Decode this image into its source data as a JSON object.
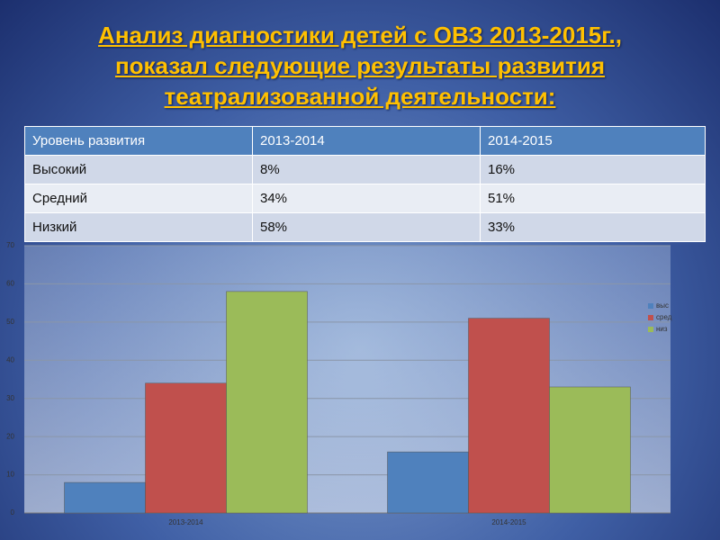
{
  "title": [
    "Анализ диагностики  детей с ОВЗ 2013-2015г.,",
    "показал следующие результаты развития",
    "театрализованной деятельности:"
  ],
  "table": {
    "header": [
      "Уровень развития",
      "2013-2014",
      "2014-2015"
    ],
    "rows": [
      [
        "Высокий",
        "8%",
        "16%"
      ],
      [
        "Средний",
        "34%",
        "51%"
      ],
      [
        "Низкий",
        "58%",
        "33%"
      ]
    ]
  },
  "chart_data": {
    "type": "bar",
    "categories": [
      "2013-2014",
      "2014-2015"
    ],
    "series": [
      {
        "name": "выс",
        "color": "#4f81bd",
        "values": [
          8,
          16
        ]
      },
      {
        "name": "сред",
        "color": "#c0504d",
        "values": [
          34,
          51
        ]
      },
      {
        "name": "низ",
        "color": "#9bbb59",
        "values": [
          58,
          33
        ]
      }
    ],
    "ylim": [
      0,
      70
    ],
    "yticks": [
      0,
      10,
      20,
      30,
      40,
      50,
      60,
      70
    ],
    "grid": true,
    "legend": "right"
  }
}
